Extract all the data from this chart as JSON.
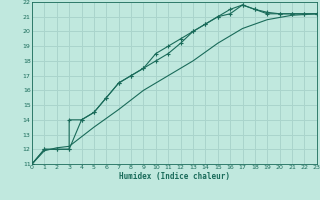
{
  "xlabel": "Humidex (Indice chaleur)",
  "xlim": [
    0,
    23
  ],
  "ylim": [
    11,
    22
  ],
  "xticks": [
    0,
    1,
    2,
    3,
    4,
    5,
    6,
    7,
    8,
    9,
    10,
    11,
    12,
    13,
    14,
    15,
    16,
    17,
    18,
    19,
    20,
    21,
    22,
    23
  ],
  "yticks": [
    11,
    12,
    13,
    14,
    15,
    16,
    17,
    18,
    19,
    20,
    21,
    22
  ],
  "bg_color": "#c0e8de",
  "grid_color": "#aad4cc",
  "line_color": "#1a6b5a",
  "line1_x": [
    0,
    1,
    2,
    3,
    4,
    5,
    6,
    7,
    8,
    9,
    10,
    11,
    12,
    13,
    14,
    15,
    16,
    17,
    18,
    19,
    20,
    21,
    22,
    23
  ],
  "line1_y": [
    11,
    12,
    12,
    12,
    14,
    14.5,
    15.5,
    16.5,
    17,
    17.5,
    18.5,
    19,
    19.5,
    20,
    20.5,
    21,
    21.2,
    21.8,
    21.5,
    21.2,
    21.2,
    21.2,
    21.2,
    21.2
  ],
  "line2_x": [
    0,
    1,
    2,
    3,
    3,
    4,
    5,
    6,
    7,
    8,
    9,
    10,
    11,
    12,
    13,
    14,
    15,
    16,
    17,
    18,
    19,
    20,
    21,
    22,
    23
  ],
  "line2_y": [
    11,
    12,
    12,
    12,
    14,
    14,
    14.5,
    15.5,
    16.5,
    17,
    17.5,
    18,
    18.5,
    19.2,
    20,
    20.5,
    21,
    21.5,
    21.8,
    21.5,
    21.3,
    21.2,
    21.2,
    21.2,
    21.2
  ],
  "line3_x": [
    0,
    1,
    2,
    3,
    5,
    7,
    9,
    11,
    13,
    15,
    17,
    19,
    21,
    23
  ],
  "line3_y": [
    11,
    11.9,
    12.1,
    12.2,
    13.5,
    14.7,
    16,
    17,
    18,
    19.2,
    20.2,
    20.8,
    21.1,
    21.2
  ]
}
